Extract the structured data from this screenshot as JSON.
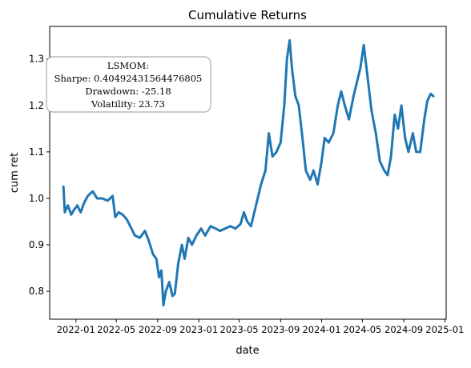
{
  "chart_data": {
    "type": "line",
    "title": "Cumulative Returns",
    "xlabel": "date",
    "ylabel": "cum ret",
    "x_tick_labels": [
      "2022-01",
      "2022-05",
      "2022-09",
      "2023-01",
      "2023-05",
      "2023-09",
      "2024-01",
      "2024-05",
      "2024-09",
      "2025-01"
    ],
    "y_ticks": [
      0.8,
      0.9,
      1.0,
      1.1,
      1.2,
      1.3
    ],
    "y_tick_labels": [
      "0.8",
      "0.9",
      "1.0",
      "1.1",
      "1.2",
      "1.3"
    ],
    "xlim": [
      "2021-10-15",
      "2025-01-05"
    ],
    "ylim": [
      0.74,
      1.37
    ],
    "grid": false,
    "legend": "none",
    "series": [
      {
        "color": "#1f77b4",
        "points": [
          [
            "2021-11-25",
            1.025
          ],
          [
            "2021-11-29",
            0.97
          ],
          [
            "2021-12-08",
            0.985
          ],
          [
            "2021-12-18",
            0.965
          ],
          [
            "2021-12-26",
            0.975
          ],
          [
            "2022-01-05",
            0.985
          ],
          [
            "2022-01-15",
            0.97
          ],
          [
            "2022-01-25",
            0.99
          ],
          [
            "2022-02-05",
            1.005
          ],
          [
            "2022-02-20",
            1.015
          ],
          [
            "2022-03-05",
            1.0
          ],
          [
            "2022-03-20",
            1.0
          ],
          [
            "2022-04-05",
            0.995
          ],
          [
            "2022-04-20",
            1.005
          ],
          [
            "2022-04-28",
            0.96
          ],
          [
            "2022-05-08",
            0.97
          ],
          [
            "2022-05-20",
            0.965
          ],
          [
            "2022-06-01",
            0.955
          ],
          [
            "2022-06-15",
            0.935
          ],
          [
            "2022-06-25",
            0.92
          ],
          [
            "2022-07-10",
            0.915
          ],
          [
            "2022-07-25",
            0.93
          ],
          [
            "2022-08-05",
            0.91
          ],
          [
            "2022-08-18",
            0.88
          ],
          [
            "2022-08-28",
            0.87
          ],
          [
            "2022-09-05",
            0.83
          ],
          [
            "2022-09-12",
            0.845
          ],
          [
            "2022-09-18",
            0.77
          ],
          [
            "2022-09-25",
            0.8
          ],
          [
            "2022-10-05",
            0.82
          ],
          [
            "2022-10-15",
            0.79
          ],
          [
            "2022-10-22",
            0.795
          ],
          [
            "2022-11-01",
            0.86
          ],
          [
            "2022-11-12",
            0.9
          ],
          [
            "2022-11-20",
            0.87
          ],
          [
            "2022-12-01",
            0.915
          ],
          [
            "2022-12-12",
            0.9
          ],
          [
            "2022-12-25",
            0.92
          ],
          [
            "2023-01-08",
            0.935
          ],
          [
            "2023-01-20",
            0.92
          ],
          [
            "2023-02-05",
            0.94
          ],
          [
            "2023-02-20",
            0.935
          ],
          [
            "2023-03-05",
            0.93
          ],
          [
            "2023-03-20",
            0.935
          ],
          [
            "2023-04-05",
            0.94
          ],
          [
            "2023-04-20",
            0.935
          ],
          [
            "2023-05-05",
            0.945
          ],
          [
            "2023-05-15",
            0.97
          ],
          [
            "2023-05-25",
            0.95
          ],
          [
            "2023-06-05",
            0.94
          ],
          [
            "2023-06-20",
            0.985
          ],
          [
            "2023-07-05",
            1.03
          ],
          [
            "2023-07-18",
            1.06
          ],
          [
            "2023-07-28",
            1.14
          ],
          [
            "2023-08-08",
            1.09
          ],
          [
            "2023-08-20",
            1.1
          ],
          [
            "2023-09-01",
            1.12
          ],
          [
            "2023-09-12",
            1.2
          ],
          [
            "2023-09-20",
            1.3
          ],
          [
            "2023-09-28",
            1.34
          ],
          [
            "2023-10-05",
            1.28
          ],
          [
            "2023-10-15",
            1.22
          ],
          [
            "2023-10-25",
            1.2
          ],
          [
            "2023-11-05",
            1.13
          ],
          [
            "2023-11-15",
            1.06
          ],
          [
            "2023-11-28",
            1.04
          ],
          [
            "2023-12-08",
            1.06
          ],
          [
            "2023-12-20",
            1.03
          ],
          [
            "2024-01-01",
            1.08
          ],
          [
            "2024-01-10",
            1.13
          ],
          [
            "2024-01-22",
            1.12
          ],
          [
            "2024-02-05",
            1.14
          ],
          [
            "2024-02-18",
            1.2
          ],
          [
            "2024-02-28",
            1.23
          ],
          [
            "2024-03-10",
            1.2
          ],
          [
            "2024-03-22",
            1.17
          ],
          [
            "2024-04-05",
            1.22
          ],
          [
            "2024-04-15",
            1.25
          ],
          [
            "2024-04-25",
            1.28
          ],
          [
            "2024-05-05",
            1.33
          ],
          [
            "2024-05-15",
            1.27
          ],
          [
            "2024-05-28",
            1.19
          ],
          [
            "2024-06-10",
            1.14
          ],
          [
            "2024-06-22",
            1.08
          ],
          [
            "2024-07-05",
            1.06
          ],
          [
            "2024-07-15",
            1.05
          ],
          [
            "2024-07-25",
            1.09
          ],
          [
            "2024-08-05",
            1.18
          ],
          [
            "2024-08-15",
            1.15
          ],
          [
            "2024-08-25",
            1.2
          ],
          [
            "2024-09-05",
            1.13
          ],
          [
            "2024-09-15",
            1.1
          ],
          [
            "2024-09-28",
            1.14
          ],
          [
            "2024-10-08",
            1.1
          ],
          [
            "2024-10-20",
            1.1
          ],
          [
            "2024-11-01",
            1.17
          ],
          [
            "2024-11-10",
            1.21
          ],
          [
            "2024-11-20",
            1.225
          ],
          [
            "2024-11-28",
            1.22
          ]
        ]
      }
    ]
  },
  "annotation": {
    "lines": [
      "LSMOM:",
      "Sharpe: 0.40492431564476805",
      "Drawdown: -25.18",
      "Volatility: 23.73"
    ]
  }
}
